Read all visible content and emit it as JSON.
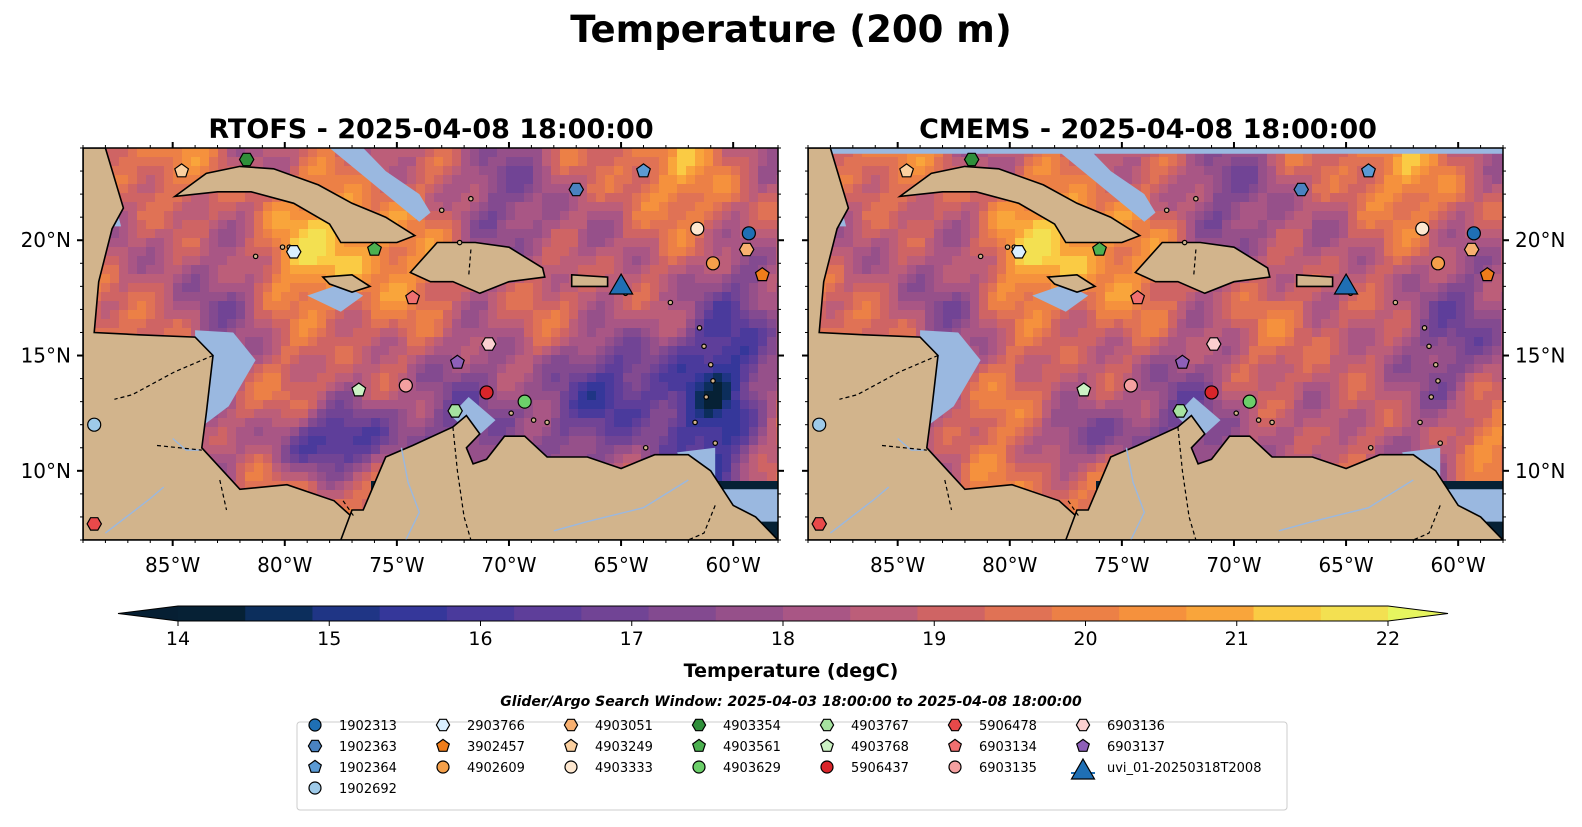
{
  "title": "Temperature (200 m)",
  "panels": [
    {
      "id": "rtofs",
      "title": "RTOFS - 2025-04-08 18:00:00",
      "dark_extent": "large"
    },
    {
      "id": "cmems",
      "title": "CMEMS - 2025-04-08 18:00:00",
      "dark_extent": "small"
    }
  ],
  "axes": {
    "lon_ticks": [
      "85°W",
      "80°W",
      "75°W",
      "70°W",
      "65°W",
      "60°W"
    ],
    "lat_ticks": [
      "20°N",
      "15°N",
      "10°N"
    ]
  },
  "colorbar": {
    "label": "Temperature (degC)",
    "min": 14,
    "max": 22,
    "step": 0.5,
    "ticks": [
      "14",
      "15",
      "16",
      "17",
      "18",
      "19",
      "20",
      "21",
      "22"
    ],
    "colors": [
      "#062135",
      "#0c2e5c",
      "#1f3585",
      "#35379a",
      "#4a3a9c",
      "#5e3e9a",
      "#714495",
      "#834a90",
      "#96508a",
      "#a95685",
      "#bc5e79",
      "#cf6464",
      "#e07255",
      "#ec8046",
      "#f5913d",
      "#f9a53b",
      "#facb44",
      "#f3e051"
    ],
    "extend_low": "#061f33",
    "extend_high": "#e6f55f"
  },
  "search_window": "Glider/Argo Search Window: 2025-04-03 18:00:00 to 2025-04-08 18:00:00",
  "map_colors": {
    "land": "#d2b48c",
    "shelf": "#9ab8e0",
    "deep": "#062135"
  },
  "chart_data": {
    "type": "map",
    "variable": "Temperature",
    "depth": "200 m",
    "units": "degC",
    "lon_range": [
      -89,
      -58
    ],
    "lat_range": [
      7,
      24
    ],
    "markers": [
      {
        "id": "1902313",
        "shape": "circle",
        "color": "#1f6fb4",
        "lon": -59.3,
        "lat": 20.3
      },
      {
        "id": "1902363",
        "shape": "hexagon",
        "color": "#4a82c0",
        "lon": -67.0,
        "lat": 22.2
      },
      {
        "id": "1902364",
        "shape": "pentagon",
        "color": "#5b9ad4",
        "lon": -64.0,
        "lat": 23.0
      },
      {
        "id": "1902692",
        "shape": "circle",
        "color": "#9ecae9",
        "lon": -88.5,
        "lat": 12.0
      },
      {
        "id": "2903766",
        "shape": "hexagon",
        "color": "#d9efff",
        "lon": -79.6,
        "lat": 19.5
      },
      {
        "id": "3902457",
        "shape": "pentagon",
        "color": "#f07d1a",
        "lon": -58.7,
        "lat": 18.5
      },
      {
        "id": "4902609",
        "shape": "circle",
        "color": "#f5a04a",
        "lon": -60.9,
        "lat": 19.0
      },
      {
        "id": "4903051",
        "shape": "hexagon",
        "color": "#f8b070",
        "lon": -59.4,
        "lat": 19.6
      },
      {
        "id": "4903249",
        "shape": "pentagon",
        "color": "#fbd0a0",
        "lon": -84.6,
        "lat": 23.0
      },
      {
        "id": "4903333",
        "shape": "circle",
        "color": "#fde7cf",
        "lon": -61.6,
        "lat": 20.5
      },
      {
        "id": "4903354",
        "shape": "hexagon",
        "color": "#2f8f3a",
        "lon": -81.7,
        "lat": 23.5
      },
      {
        "id": "4903561",
        "shape": "pentagon",
        "color": "#4cb050",
        "lon": -76.0,
        "lat": 19.6
      },
      {
        "id": "4903629",
        "shape": "circle",
        "color": "#6ccf6a",
        "lon": -69.3,
        "lat": 13.0
      },
      {
        "id": "4903767",
        "shape": "hexagon",
        "color": "#a6e3a0",
        "lon": -72.4,
        "lat": 12.6
      },
      {
        "id": "4903768",
        "shape": "pentagon",
        "color": "#ccf2c4",
        "lon": -76.7,
        "lat": 13.5
      },
      {
        "id": "5906437",
        "shape": "circle",
        "color": "#d9252a",
        "lon": -71.0,
        "lat": 13.4
      },
      {
        "id": "5906478",
        "shape": "hexagon",
        "color": "#e8494a",
        "lon": -88.5,
        "lat": 7.7
      },
      {
        "id": "6903134",
        "shape": "pentagon",
        "color": "#f07070",
        "lon": -74.3,
        "lat": 17.5
      },
      {
        "id": "6903135",
        "shape": "circle",
        "color": "#f4a0a0",
        "lon": -74.6,
        "lat": 13.7
      },
      {
        "id": "6903136",
        "shape": "hexagon",
        "color": "#fbd0d0",
        "lon": -70.9,
        "lat": 15.5
      },
      {
        "id": "6903137",
        "shape": "pentagon",
        "color": "#8e5fb8",
        "lon": -72.3,
        "lat": 14.7
      },
      {
        "id": "uvi_01-20250318T2008",
        "shape": "triangle",
        "color": "#1f6fb4",
        "lon": -65.0,
        "lat": 18.1
      }
    ]
  }
}
